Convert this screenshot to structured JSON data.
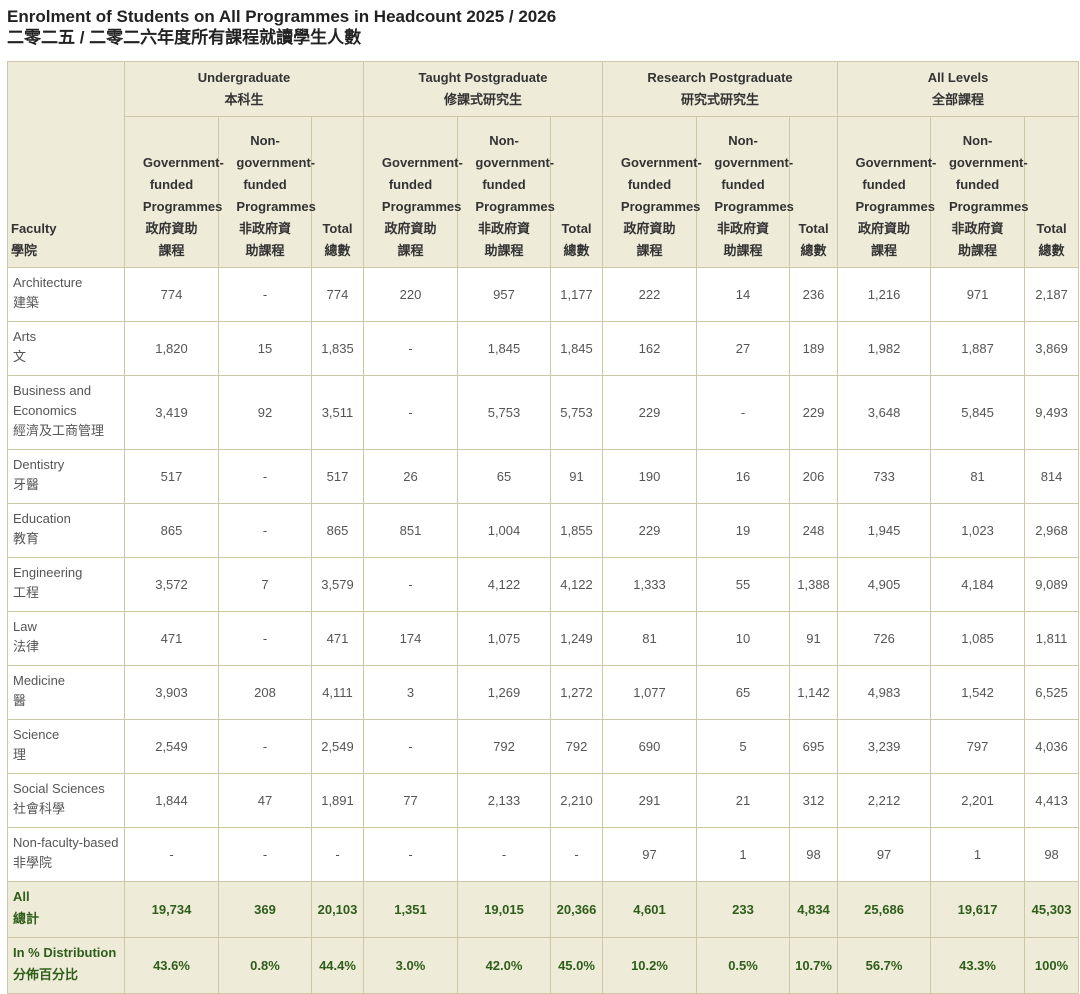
{
  "header": {
    "title": "Enrolment of Students on All Programmes in Headcount 2025 / 2026",
    "subtitle": "二零二五 / 二零二六年度所有課程就讀學生人數"
  },
  "table": {
    "faculty_header": {
      "en": "Faculty",
      "zh": "學院"
    },
    "groups": [
      {
        "en": "Undergraduate",
        "zh": "本科生"
      },
      {
        "en": "Taught Postgraduate",
        "zh": "修課式研究生"
      },
      {
        "en": "Research Postgraduate",
        "zh": "研究式研究生"
      },
      {
        "en": "All Levels",
        "zh": "全部課程"
      }
    ],
    "subheaders": [
      {
        "en": "Government-funded Programmes",
        "zh": "政府資助課程"
      },
      {
        "en": "Non-government-funded Programmes",
        "zh": "非政府資助課程"
      },
      {
        "en": "Total",
        "zh": "總數"
      },
      {
        "en": "Government-funded Programmes",
        "zh": "政府資助課程"
      },
      {
        "en": "Non-government-funded Programmes",
        "zh": "非政府資助課程"
      },
      {
        "en": "Total",
        "zh": "總數"
      },
      {
        "en": "Government-funded Programmes",
        "zh": "政府資助課程"
      },
      {
        "en": "Non-government-funded Programmes",
        "zh": "非政府資助課程"
      },
      {
        "en": "Total",
        "zh": "總數"
      },
      {
        "en": "Government-funded Programmes",
        "zh": "政府資助課程"
      },
      {
        "en": "Non-government-funded Programmes",
        "zh": "非政府資助課程"
      },
      {
        "en": "Total",
        "zh": "總數"
      }
    ],
    "rows": [
      {
        "en": "Architecture",
        "zh": "建築",
        "cells": [
          "774",
          "-",
          "774",
          "220",
          "957",
          "1,177",
          "222",
          "14",
          "236",
          "1,216",
          "971",
          "2,187"
        ]
      },
      {
        "en": "Arts",
        "zh": "文",
        "cells": [
          "1,820",
          "15",
          "1,835",
          "-",
          "1,845",
          "1,845",
          "162",
          "27",
          "189",
          "1,982",
          "1,887",
          "3,869"
        ]
      },
      {
        "en": "Business and Economics",
        "zh": "經濟及工商管理",
        "cells": [
          "3,419",
          "92",
          "3,511",
          "-",
          "5,753",
          "5,753",
          "229",
          "-",
          "229",
          "3,648",
          "5,845",
          "9,493"
        ]
      },
      {
        "en": "Dentistry",
        "zh": "牙醫",
        "cells": [
          "517",
          "-",
          "517",
          "26",
          "65",
          "91",
          "190",
          "16",
          "206",
          "733",
          "81",
          "814"
        ]
      },
      {
        "en": "Education",
        "zh": "教育",
        "cells": [
          "865",
          "-",
          "865",
          "851",
          "1,004",
          "1,855",
          "229",
          "19",
          "248",
          "1,945",
          "1,023",
          "2,968"
        ]
      },
      {
        "en": "Engineering",
        "zh": "工程",
        "cells": [
          "3,572",
          "7",
          "3,579",
          "-",
          "4,122",
          "4,122",
          "1,333",
          "55",
          "1,388",
          "4,905",
          "4,184",
          "9,089"
        ]
      },
      {
        "en": "Law",
        "zh": "法律",
        "cells": [
          "471",
          "-",
          "471",
          "174",
          "1,075",
          "1,249",
          "81",
          "10",
          "91",
          "726",
          "1,085",
          "1,811"
        ]
      },
      {
        "en": "Medicine",
        "zh": "醫",
        "cells": [
          "3,903",
          "208",
          "4,111",
          "3",
          "1,269",
          "1,272",
          "1,077",
          "65",
          "1,142",
          "4,983",
          "1,542",
          "6,525"
        ]
      },
      {
        "en": "Science",
        "zh": "理",
        "cells": [
          "2,549",
          "-",
          "2,549",
          "-",
          "792",
          "792",
          "690",
          "5",
          "695",
          "3,239",
          "797",
          "4,036"
        ]
      },
      {
        "en": "Social Sciences",
        "zh": "社會科學",
        "cells": [
          "1,844",
          "47",
          "1,891",
          "77",
          "2,133",
          "2,210",
          "291",
          "21",
          "312",
          "2,212",
          "2,201",
          "4,413"
        ]
      },
      {
        "en": "Non-faculty-based",
        "zh": "非學院",
        "cells": [
          "-",
          "-",
          "-",
          "-",
          "-",
          "-",
          "97",
          "1",
          "98",
          "97",
          "1",
          "98"
        ]
      }
    ],
    "totals": [
      {
        "en": "All",
        "zh": "總計",
        "cells": [
          "19,734",
          "369",
          "20,103",
          "1,351",
          "19,015",
          "20,366",
          "4,601",
          "233",
          "4,834",
          "25,686",
          "19,617",
          "45,303"
        ]
      },
      {
        "en": "In % Distribution",
        "zh": "分佈百分比",
        "cells": [
          "43.6%",
          "0.8%",
          "44.4%",
          "3.0%",
          "42.0%",
          "45.0%",
          "10.2%",
          "0.5%",
          "10.7%",
          "56.7%",
          "43.3%",
          "100%"
        ]
      }
    ]
  }
}
